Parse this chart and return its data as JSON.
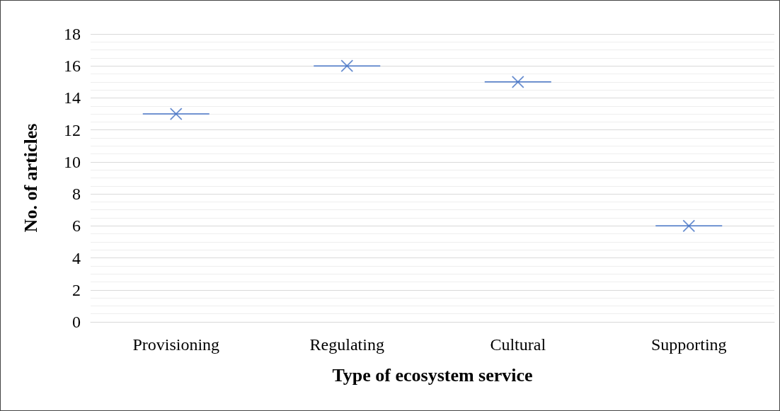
{
  "chart_data": {
    "type": "scatter",
    "xlabel": "Type of ecosystem service",
    "ylabel": "No. of articles",
    "categories": [
      "Provisioning",
      "Regulating",
      "Cultural",
      "Supporting"
    ],
    "values": [
      13,
      16,
      15,
      6
    ],
    "color": "#4472c4",
    "marker": "cross",
    "ylim": [
      0,
      18
    ],
    "yticks": [
      0,
      2,
      4,
      6,
      8,
      10,
      12,
      14,
      16,
      18
    ],
    "grid": "y"
  }
}
